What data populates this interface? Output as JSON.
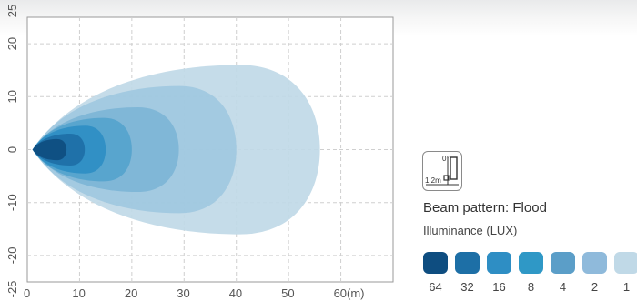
{
  "chart_data": {
    "type": "contour",
    "x_ticks": [
      "0",
      "10",
      "20",
      "30",
      "40",
      "50",
      "60(m)"
    ],
    "y_ticks": [
      "25",
      "20",
      "10",
      "0",
      "-10",
      "-20",
      "-25"
    ],
    "xlim": [
      0,
      70
    ],
    "ylim": [
      -25,
      25
    ],
    "grid": true,
    "series": [
      {
        "lux": "1",
        "color": "#c0d9e7",
        "x_extent": [
          1,
          56
        ],
        "y_half_width": 16
      },
      {
        "lux": "2",
        "color": "#a0c8df",
        "x_extent": [
          1,
          40
        ],
        "y_half_width": 12
      },
      {
        "lux": "4",
        "color": "#7db5d6",
        "x_extent": [
          1,
          29
        ],
        "y_half_width": 8
      },
      {
        "lux": "8",
        "color": "#55a3cd",
        "x_extent": [
          1,
          20
        ],
        "y_half_width": 6
      },
      {
        "lux": "16",
        "color": "#2e8ec4",
        "x_extent": [
          1,
          15
        ],
        "y_half_width": 4.5
      },
      {
        "lux": "32",
        "color": "#1d6fa6",
        "x_extent": [
          1,
          11
        ],
        "y_half_width": 3
      },
      {
        "lux": "64",
        "color": "#0e4d80",
        "x_extent": [
          1,
          7.5
        ],
        "y_half_width": 2
      }
    ]
  },
  "mount": {
    "angle": "0°",
    "height": "1.2m"
  },
  "legend": {
    "beam_pattern": "Beam pattern: Flood",
    "title": "Illuminance (LUX)",
    "items": [
      {
        "value": "64",
        "color": "#0e4d80"
      },
      {
        "value": "32",
        "color": "#1d6fa6"
      },
      {
        "value": "16",
        "color": "#2e8ec4"
      },
      {
        "value": "8",
        "color": "#2f98c6"
      },
      {
        "value": "4",
        "color": "#5b9ec8"
      },
      {
        "value": "2",
        "color": "#8fbadb"
      },
      {
        "value": "1",
        "color": "#c0d9e7"
      }
    ]
  }
}
